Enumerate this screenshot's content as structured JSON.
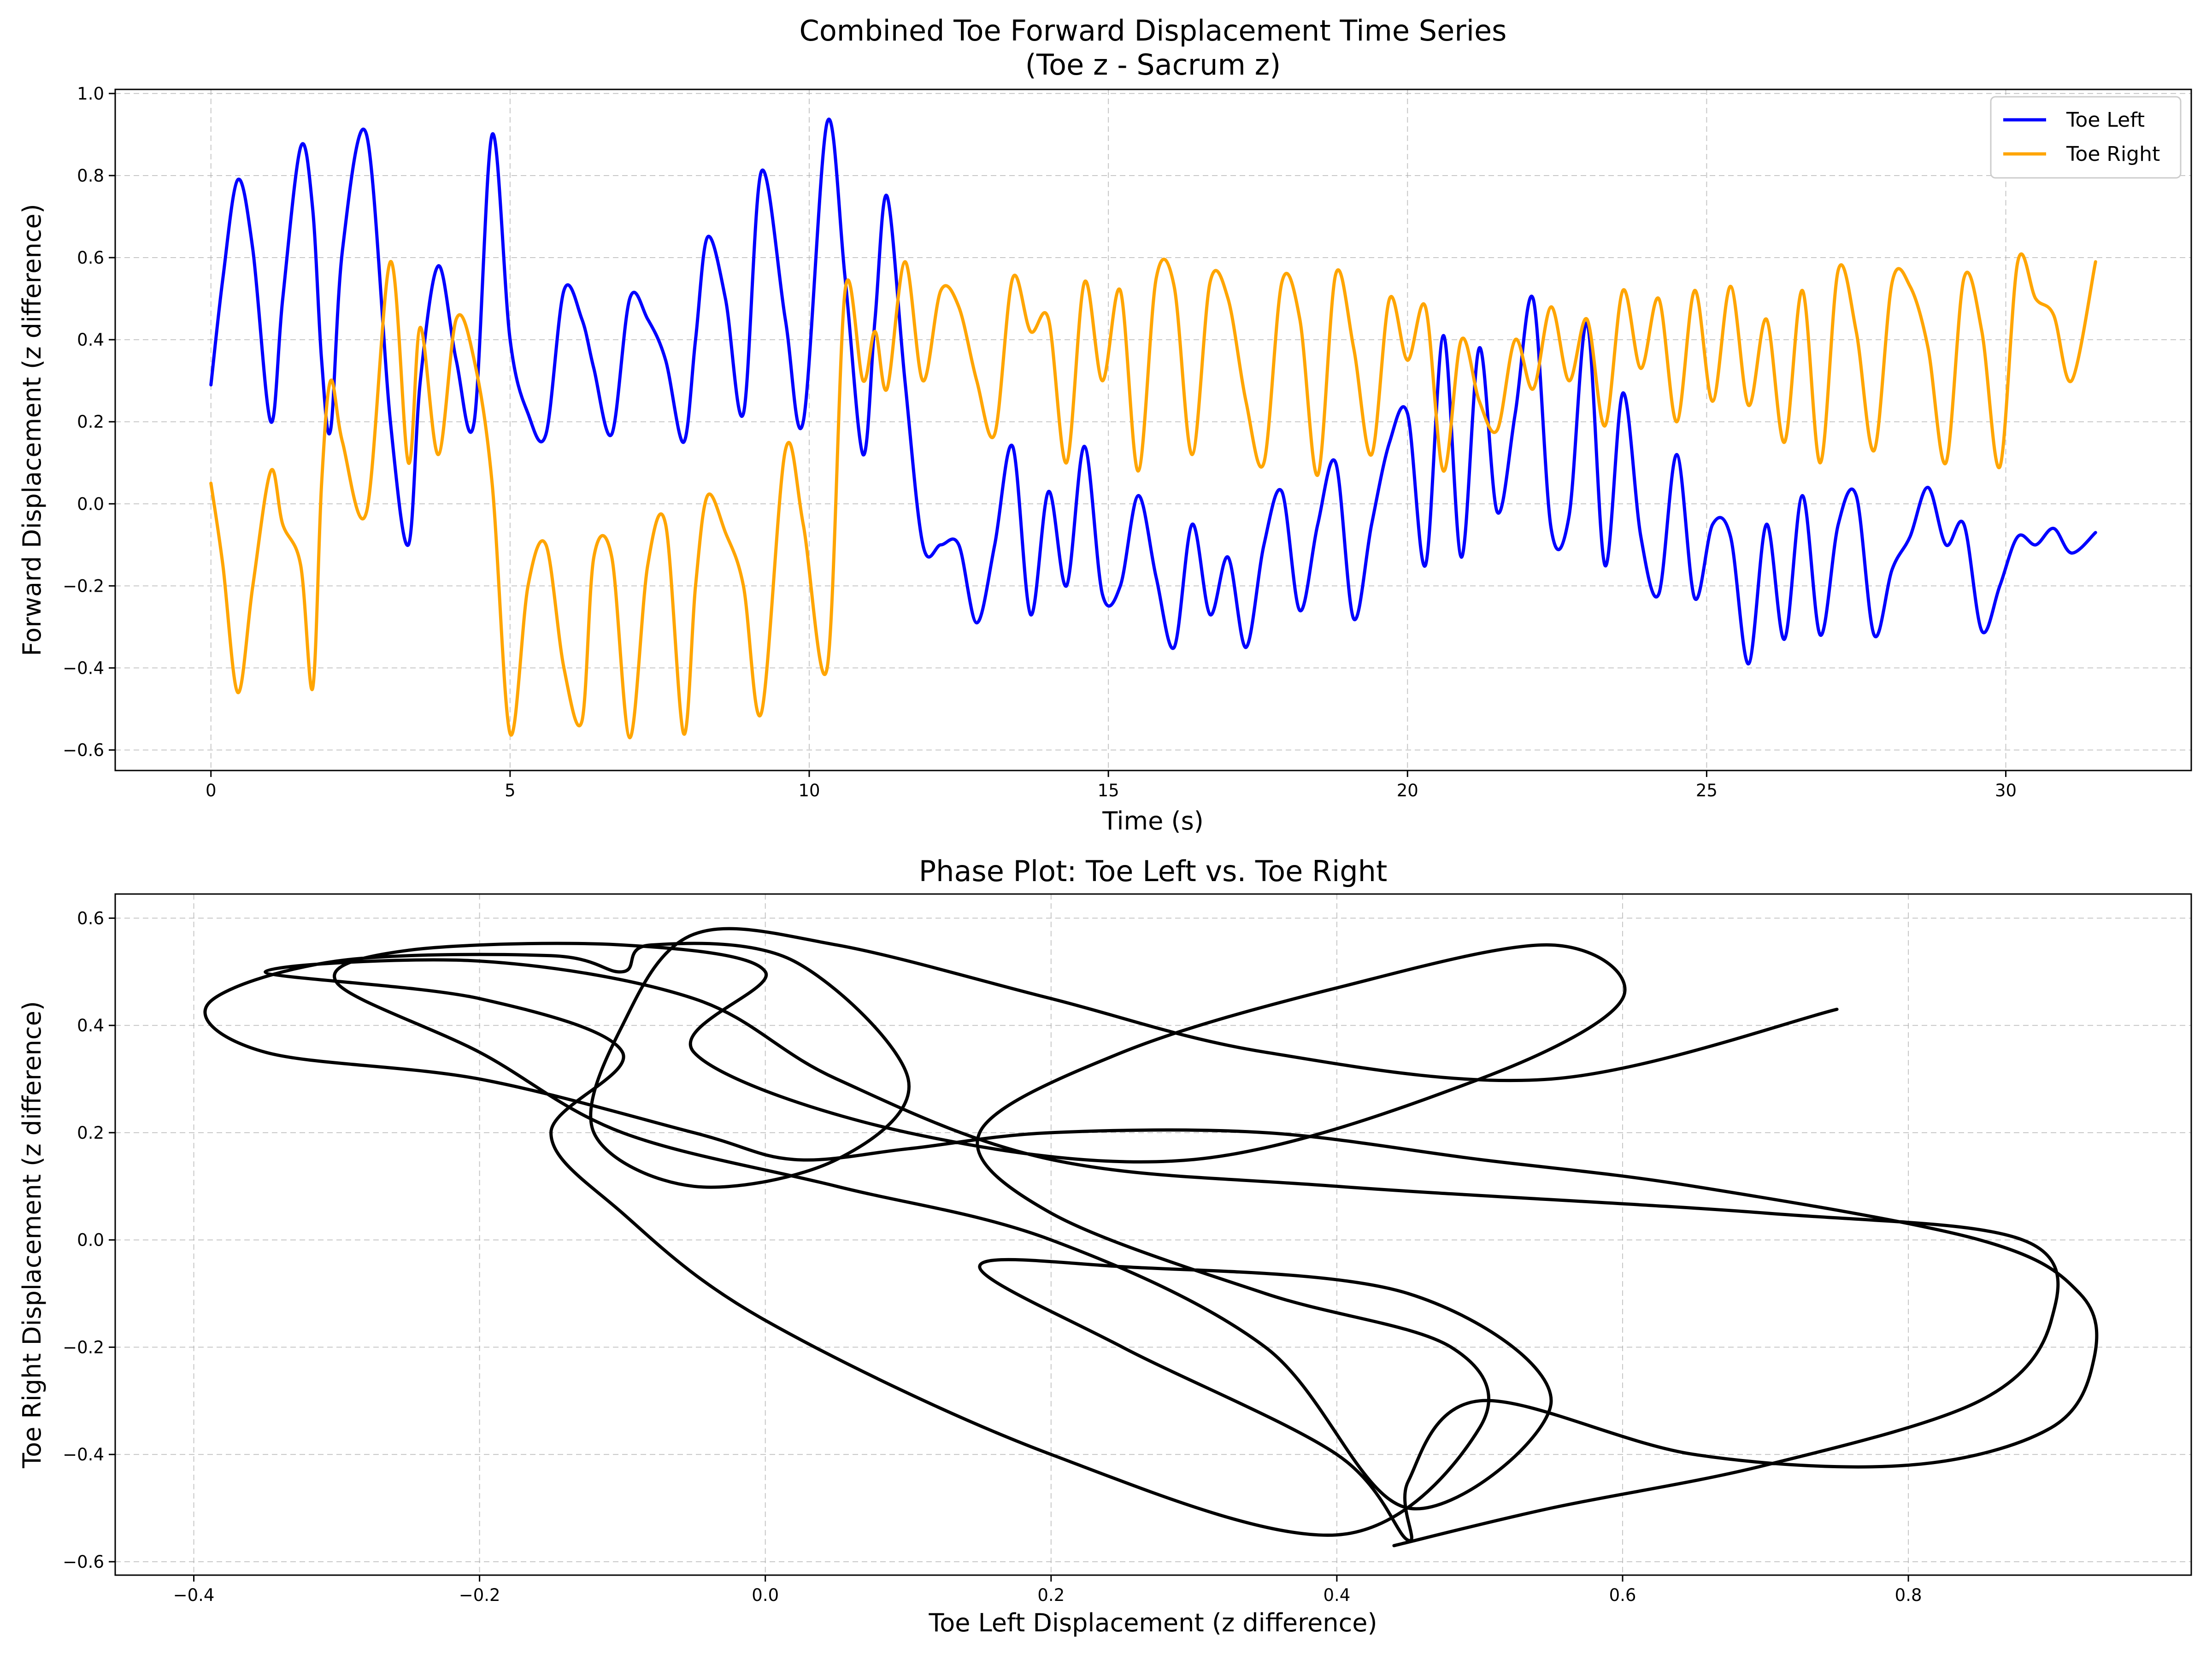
{
  "chart_data": [
    {
      "type": "line",
      "title": "Combined Toe Forward Displacement Time Series\n(Toe z - Sacrum z)",
      "xlabel": "Time (s)",
      "ylabel": "Forward Displacement (z difference)",
      "xlim": [
        -1.6,
        33.1
      ],
      "ylim": [
        -0.65,
        1.01
      ],
      "xticks": [
        0,
        5,
        10,
        15,
        20,
        25,
        30
      ],
      "yticks": [
        -0.6,
        -0.4,
        -0.2,
        0.0,
        0.2,
        0.4,
        0.6,
        0.8,
        1.0
      ],
      "xtick_labels": [
        "0",
        "5",
        "10",
        "15",
        "20",
        "25",
        "30"
      ],
      "ytick_labels": [
        "−0.6",
        "−0.4",
        "−0.2",
        "0.0",
        "0.2",
        "0.4",
        "0.6",
        "0.8",
        "1.0"
      ],
      "grid": true,
      "legend": "top-right",
      "x": [
        0.0,
        0.2,
        0.45,
        0.7,
        1.0,
        1.2,
        1.5,
        1.7,
        1.85,
        2.0,
        2.2,
        2.6,
        3.0,
        3.3,
        3.5,
        3.8,
        4.1,
        4.4,
        4.7,
        5.0,
        5.3,
        5.6,
        5.9,
        6.2,
        6.4,
        6.7,
        7.0,
        7.3,
        7.6,
        7.9,
        8.1,
        8.3,
        8.6,
        8.9,
        9.2,
        9.6,
        9.9,
        10.3,
        10.6,
        10.9,
        11.1,
        11.3,
        11.6,
        11.9,
        12.2,
        12.5,
        12.8,
        13.1,
        13.4,
        13.7,
        14.0,
        14.3,
        14.6,
        14.9,
        15.2,
        15.5,
        15.8,
        16.1,
        16.4,
        16.7,
        17.0,
        17.3,
        17.6,
        17.9,
        18.2,
        18.5,
        18.8,
        19.1,
        19.4,
        19.7,
        20.0,
        20.3,
        20.6,
        20.9,
        21.2,
        21.5,
        21.8,
        22.1,
        22.4,
        22.7,
        23.0,
        23.3,
        23.6,
        23.9,
        24.2,
        24.5,
        24.8,
        25.1,
        25.4,
        25.7,
        26.0,
        26.3,
        26.6,
        26.9,
        27.2,
        27.5,
        27.8,
        28.1,
        28.4,
        28.7,
        29.0,
        29.3,
        29.6,
        29.9,
        30.2,
        30.5,
        30.8,
        31.1,
        31.5
      ],
      "series": [
        {
          "name": "Toe Left",
          "color": "#0000ff",
          "values": [
            0.29,
            0.55,
            0.79,
            0.62,
            0.2,
            0.5,
            0.87,
            0.72,
            0.35,
            0.18,
            0.62,
            0.9,
            0.2,
            -0.1,
            0.3,
            0.58,
            0.35,
            0.2,
            0.9,
            0.4,
            0.22,
            0.17,
            0.52,
            0.45,
            0.33,
            0.17,
            0.5,
            0.45,
            0.35,
            0.15,
            0.4,
            0.65,
            0.5,
            0.22,
            0.81,
            0.45,
            0.2,
            0.93,
            0.55,
            0.12,
            0.45,
            0.75,
            0.3,
            -0.1,
            -0.1,
            -0.1,
            -0.29,
            -0.1,
            0.14,
            -0.27,
            0.03,
            -0.2,
            0.14,
            -0.22,
            -0.2,
            0.02,
            -0.18,
            -0.35,
            -0.05,
            -0.27,
            -0.13,
            -0.35,
            -0.1,
            0.03,
            -0.26,
            -0.05,
            0.1,
            -0.28,
            -0.05,
            0.15,
            0.22,
            -0.15,
            0.41,
            -0.13,
            0.38,
            -0.02,
            0.22,
            0.5,
            -0.06,
            -0.03,
            0.44,
            -0.15,
            0.27,
            -0.08,
            -0.22,
            0.12,
            -0.23,
            -0.05,
            -0.08,
            -0.39,
            -0.05,
            -0.33,
            0.02,
            -0.32,
            -0.05,
            0.02,
            -0.32,
            -0.16,
            -0.08,
            0.04,
            -0.1,
            -0.05,
            -0.31,
            -0.2,
            -0.08,
            -0.1,
            -0.06,
            -0.12,
            -0.07
          ]
        },
        {
          "name": "Toe Right",
          "color": "#ffa500",
          "values": [
            0.05,
            -0.15,
            -0.46,
            -0.2,
            0.08,
            -0.05,
            -0.15,
            -0.45,
            0.05,
            0.3,
            0.15,
            -0.02,
            0.59,
            0.1,
            0.43,
            0.12,
            0.45,
            0.35,
            0.05,
            -0.56,
            -0.2,
            -0.1,
            -0.4,
            -0.53,
            -0.13,
            -0.13,
            -0.57,
            -0.15,
            -0.05,
            -0.56,
            -0.2,
            0.02,
            -0.07,
            -0.2,
            -0.51,
            0.13,
            -0.05,
            -0.4,
            0.52,
            0.3,
            0.42,
            0.28,
            0.59,
            0.3,
            0.52,
            0.48,
            0.3,
            0.17,
            0.55,
            0.42,
            0.45,
            0.1,
            0.54,
            0.3,
            0.52,
            0.08,
            0.55,
            0.53,
            0.12,
            0.54,
            0.5,
            0.25,
            0.1,
            0.54,
            0.45,
            0.07,
            0.56,
            0.38,
            0.12,
            0.5,
            0.35,
            0.48,
            0.08,
            0.4,
            0.25,
            0.18,
            0.4,
            0.28,
            0.48,
            0.3,
            0.45,
            0.19,
            0.52,
            0.33,
            0.5,
            0.2,
            0.52,
            0.25,
            0.53,
            0.24,
            0.45,
            0.15,
            0.52,
            0.1,
            0.57,
            0.42,
            0.13,
            0.54,
            0.53,
            0.38,
            0.1,
            0.55,
            0.42,
            0.09,
            0.59,
            0.5,
            0.46,
            0.3,
            0.59
          ]
        }
      ]
    },
    {
      "type": "line",
      "title": "Phase Plot: Toe Left vs. Toe Right",
      "xlabel": "Toe Left Displacement (z difference)",
      "ylabel": "Toe Right Displacement (z difference)",
      "xlim": [
        -0.455,
        0.998
      ],
      "ylim": [
        -0.625,
        0.645
      ],
      "xticks": [
        -0.4,
        -0.2,
        0.0,
        0.2,
        0.4,
        0.6,
        0.8
      ],
      "yticks": [
        -0.6,
        -0.4,
        -0.2,
        0.0,
        0.2,
        0.4,
        0.6
      ],
      "xtick_labels": [
        "−0.4",
        "−0.2",
        "0.0",
        "0.2",
        "0.4",
        "0.6",
        "0.8"
      ],
      "ytick_labels": [
        "−0.6",
        "−0.4",
        "−0.2",
        "0.0",
        "0.2",
        "0.4",
        "0.6"
      ],
      "grid": true,
      "color": "#000000",
      "series": [
        {
          "x": [
            0.75,
            0.55,
            0.35,
            0.2,
            0.05,
            -0.05,
            -0.1,
            -0.12,
            -0.05,
            0.05,
            0.1,
            0.02,
            -0.08,
            -0.1,
            -0.15,
            -0.3,
            -0.39,
            -0.35,
            -0.2,
            -0.05,
            0.02,
            0.1,
            0.2,
            0.35,
            0.5,
            0.65,
            0.85,
            0.92,
            0.93,
            0.9,
            0.8,
            0.65,
            0.5,
            0.45,
            0.45,
            0.4,
            0.25,
            0.15,
            0.25,
            0.45,
            0.55,
            0.45,
            0.35,
            0.2,
            0.05,
            -0.1,
            -0.2,
            -0.3,
            -0.25,
            -0.1,
            0.0,
            -0.05,
            0.1,
            0.3,
            0.5,
            0.6,
            0.55,
            0.4,
            0.25,
            0.15,
            0.2,
            0.35,
            0.48,
            0.5,
            0.4,
            0.2,
            0.0,
            -0.1,
            -0.15,
            -0.1,
            -0.2,
            -0.35,
            -0.2,
            -0.05,
            0.05,
            0.2,
            0.4,
            0.7,
            0.88,
            0.9,
            0.85,
            0.7,
            0.55,
            0.44
          ],
          "y": [
            0.43,
            0.3,
            0.35,
            0.45,
            0.55,
            0.57,
            0.4,
            0.2,
            0.1,
            0.15,
            0.3,
            0.52,
            0.55,
            0.5,
            0.53,
            0.52,
            0.44,
            0.35,
            0.3,
            0.2,
            0.15,
            0.17,
            0.2,
            0.2,
            0.15,
            0.1,
            0.0,
            -0.1,
            -0.22,
            -0.35,
            -0.42,
            -0.4,
            -0.3,
            -0.45,
            -0.56,
            -0.4,
            -0.2,
            -0.05,
            -0.05,
            -0.1,
            -0.3,
            -0.5,
            -0.2,
            0.0,
            0.1,
            0.2,
            0.35,
            0.48,
            0.54,
            0.55,
            0.5,
            0.35,
            0.2,
            0.15,
            0.3,
            0.45,
            0.55,
            0.47,
            0.35,
            0.2,
            0.05,
            -0.1,
            -0.2,
            -0.35,
            -0.55,
            -0.4,
            -0.15,
            0.05,
            0.2,
            0.35,
            0.45,
            0.5,
            0.52,
            0.45,
            0.3,
            0.15,
            0.1,
            0.05,
            0.0,
            -0.15,
            -0.3,
            -0.42,
            -0.5,
            -0.57
          ]
        }
      ]
    }
  ]
}
